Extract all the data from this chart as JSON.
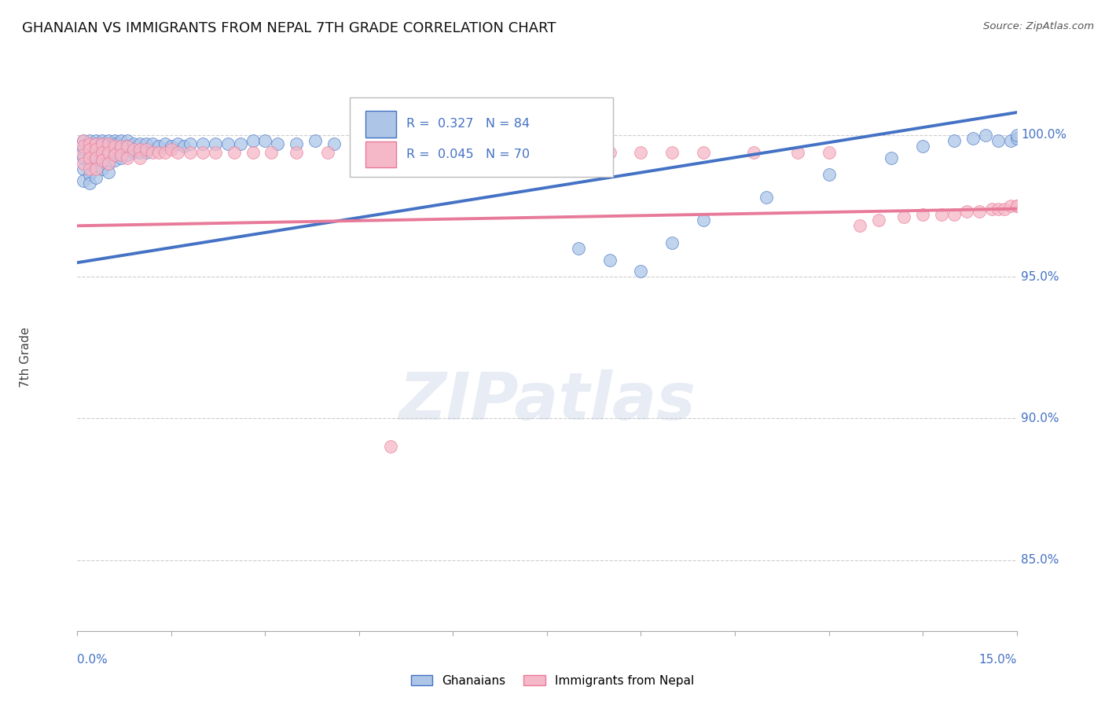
{
  "title": "GHANAIAN VS IMMIGRANTS FROM NEPAL 7TH GRADE CORRELATION CHART",
  "source": "Source: ZipAtlas.com",
  "ylabel": "7th Grade",
  "ylabel_tick_vals": [
    0.85,
    0.9,
    0.95,
    1.0
  ],
  "xmin": 0.0,
  "xmax": 0.15,
  "ymin": 0.825,
  "ymax": 1.018,
  "watermark": "ZIPatlas",
  "blue_r": "0.327",
  "blue_n": "84",
  "pink_r": "0.045",
  "pink_n": "70",
  "blue_line_x": [
    0.0,
    0.15
  ],
  "blue_line_y": [
    0.955,
    1.008
  ],
  "pink_line_x": [
    0.0,
    0.15
  ],
  "pink_line_y": [
    0.968,
    0.974
  ],
  "blue_color": "#4472c4",
  "pink_color": "#e87a99",
  "blue_scatter_color": "#adc6e8",
  "pink_scatter_color": "#f5b8c8",
  "grid_color": "#c8c8c8",
  "axis_label_color": "#4472c4",
  "background_color": "#ffffff",
  "blue_scatter_x": [
    0.001,
    0.001,
    0.001,
    0.001,
    0.001,
    0.002,
    0.002,
    0.002,
    0.002,
    0.002,
    0.002,
    0.003,
    0.003,
    0.003,
    0.003,
    0.003,
    0.003,
    0.004,
    0.004,
    0.004,
    0.004,
    0.004,
    0.004,
    0.005,
    0.005,
    0.005,
    0.005,
    0.005,
    0.006,
    0.006,
    0.006,
    0.006,
    0.007,
    0.007,
    0.007,
    0.008,
    0.008,
    0.008,
    0.009,
    0.009,
    0.01,
    0.01,
    0.011,
    0.011,
    0.012,
    0.013,
    0.014,
    0.015,
    0.016,
    0.017,
    0.018,
    0.02,
    0.022,
    0.024,
    0.026,
    0.028,
    0.03,
    0.032,
    0.035,
    0.038,
    0.041,
    0.045,
    0.05,
    0.055,
    0.06,
    0.065,
    0.07,
    0.075,
    0.08,
    0.085,
    0.09,
    0.095,
    0.1,
    0.11,
    0.12,
    0.13,
    0.135,
    0.14,
    0.143,
    0.145,
    0.147,
    0.149,
    0.15,
    0.15
  ],
  "blue_scatter_y": [
    0.998,
    0.995,
    0.992,
    0.988,
    0.984,
    0.998,
    0.996,
    0.993,
    0.99,
    0.986,
    0.983,
    0.998,
    0.997,
    0.995,
    0.992,
    0.989,
    0.985,
    0.998,
    0.997,
    0.996,
    0.994,
    0.991,
    0.988,
    0.998,
    0.996,
    0.993,
    0.99,
    0.987,
    0.998,
    0.997,
    0.994,
    0.991,
    0.998,
    0.995,
    0.992,
    0.998,
    0.996,
    0.993,
    0.997,
    0.994,
    0.997,
    0.994,
    0.997,
    0.994,
    0.997,
    0.996,
    0.997,
    0.996,
    0.997,
    0.996,
    0.997,
    0.997,
    0.997,
    0.997,
    0.997,
    0.998,
    0.998,
    0.997,
    0.997,
    0.998,
    0.997,
    0.997,
    0.998,
    0.997,
    0.998,
    0.998,
    0.997,
    0.994,
    0.96,
    0.956,
    0.952,
    0.962,
    0.97,
    0.978,
    0.986,
    0.992,
    0.996,
    0.998,
    0.999,
    1.0,
    0.998,
    0.998,
    0.999,
    1.0
  ],
  "pink_scatter_x": [
    0.001,
    0.001,
    0.001,
    0.001,
    0.002,
    0.002,
    0.002,
    0.002,
    0.003,
    0.003,
    0.003,
    0.003,
    0.004,
    0.004,
    0.004,
    0.005,
    0.005,
    0.005,
    0.006,
    0.006,
    0.007,
    0.007,
    0.008,
    0.008,
    0.009,
    0.01,
    0.01,
    0.011,
    0.012,
    0.013,
    0.014,
    0.015,
    0.016,
    0.018,
    0.02,
    0.022,
    0.025,
    0.028,
    0.031,
    0.035,
    0.04,
    0.045,
    0.05,
    0.055,
    0.06,
    0.065,
    0.07,
    0.075,
    0.08,
    0.085,
    0.09,
    0.095,
    0.1,
    0.108,
    0.115,
    0.12,
    0.125,
    0.128,
    0.132,
    0.135,
    0.138,
    0.14,
    0.142,
    0.144,
    0.146,
    0.147,
    0.148,
    0.149,
    0.15,
    0.15
  ],
  "pink_scatter_y": [
    0.998,
    0.996,
    0.993,
    0.99,
    0.997,
    0.995,
    0.992,
    0.988,
    0.997,
    0.995,
    0.992,
    0.988,
    0.997,
    0.994,
    0.991,
    0.997,
    0.994,
    0.99,
    0.996,
    0.993,
    0.996,
    0.993,
    0.996,
    0.992,
    0.995,
    0.995,
    0.992,
    0.995,
    0.994,
    0.994,
    0.994,
    0.995,
    0.994,
    0.994,
    0.994,
    0.994,
    0.994,
    0.994,
    0.994,
    0.994,
    0.994,
    0.994,
    0.89,
    0.994,
    0.994,
    0.994,
    0.994,
    0.994,
    0.994,
    0.994,
    0.994,
    0.994,
    0.994,
    0.994,
    0.994,
    0.994,
    0.968,
    0.97,
    0.971,
    0.972,
    0.972,
    0.972,
    0.973,
    0.973,
    0.974,
    0.974,
    0.974,
    0.975,
    0.975,
    0.975
  ]
}
